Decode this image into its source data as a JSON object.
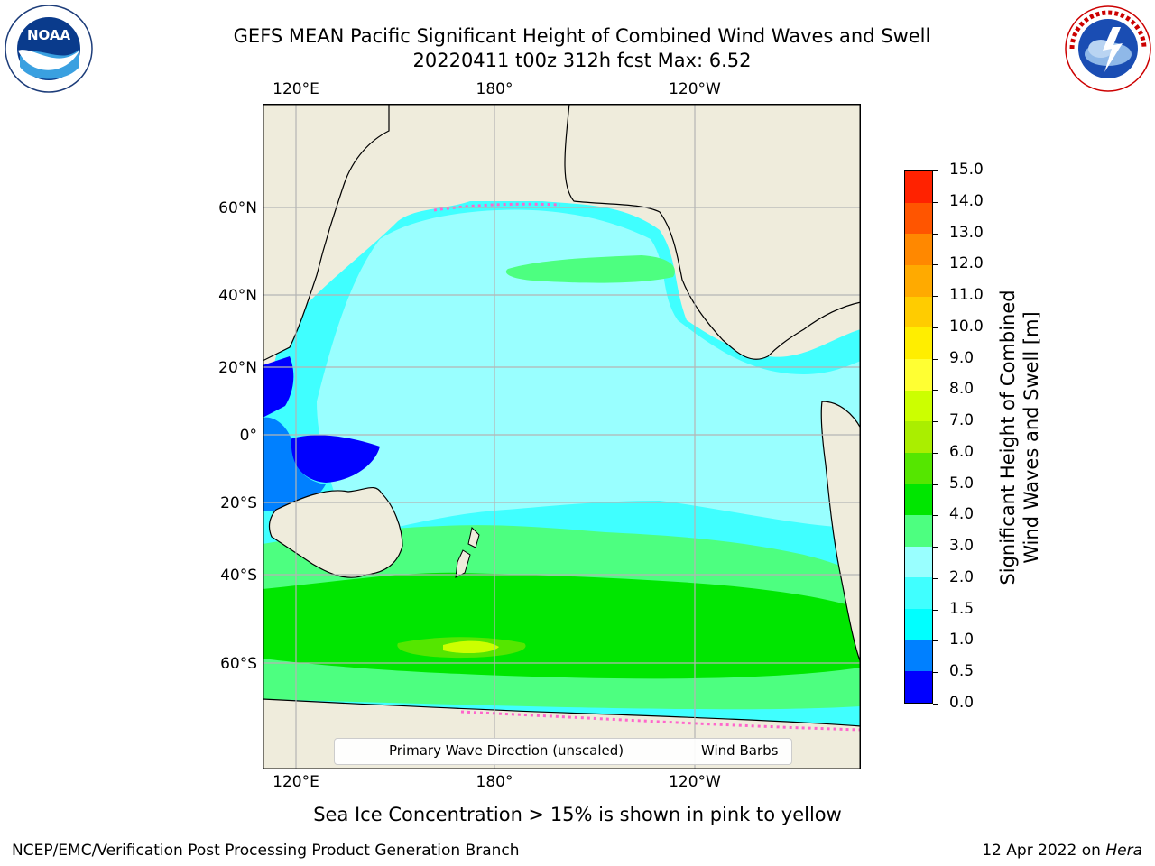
{
  "header": {
    "title_line1": "GEFS MEAN Pacific Significant Height of Combined Wind Waves and Swell",
    "title_line2": "20220411 t00z 312h fcst   Max: 6.52"
  },
  "logos": {
    "left": {
      "name": "noaa-logo",
      "text": "NOAA"
    },
    "right": {
      "name": "nws-logo",
      "text": "NATIONAL WEATHER SERVICE"
    }
  },
  "map": {
    "lon_ticks_top": [
      "120°E",
      "180°",
      "120°W"
    ],
    "lon_ticks_bottom": [
      "120°E",
      "180°",
      "120°W"
    ],
    "lat_ticks": [
      "60°N",
      "40°N",
      "20°N",
      "0°",
      "20°S",
      "40°S",
      "60°S"
    ],
    "legend": {
      "wave_direction": "Primary Wave Direction (unscaled)",
      "wind_barbs": "Wind Barbs"
    },
    "colors": {
      "land": "#efecdc",
      "wave_direction_line": "#ff0000",
      "wind_barb_line": "#000000"
    }
  },
  "colorbar": {
    "title_line1": "Significant Height of Combined",
    "title_line2": "Wind Waves and Swell [m]",
    "ticks": [
      "15.0",
      "14.0",
      "13.0",
      "12.0",
      "11.0",
      "10.0",
      "9.0",
      "8.0",
      "7.0",
      "6.0",
      "5.0",
      "4.0",
      "3.0",
      "2.0",
      "1.5",
      "1.0",
      "0.5",
      "0.0"
    ],
    "colors_bottom_to_top": [
      "#0000ff",
      "#0080ff",
      "#00ffff",
      "#40ffff",
      "#99ffff",
      "#4dff80",
      "#00e600",
      "#55e600",
      "#aaee00",
      "#ccff00",
      "#ffff33",
      "#ffee00",
      "#ffcc00",
      "#ffaa00",
      "#ff8800",
      "#ff5500",
      "#ff2200"
    ]
  },
  "note": "Sea Ice Concentration > 15% is shown in pink to yellow",
  "footer": {
    "left": "NCEP/EMC/Verification Post Processing Product Generation Branch",
    "right_date": "12 Apr 2022 on ",
    "right_system": "Hera"
  }
}
